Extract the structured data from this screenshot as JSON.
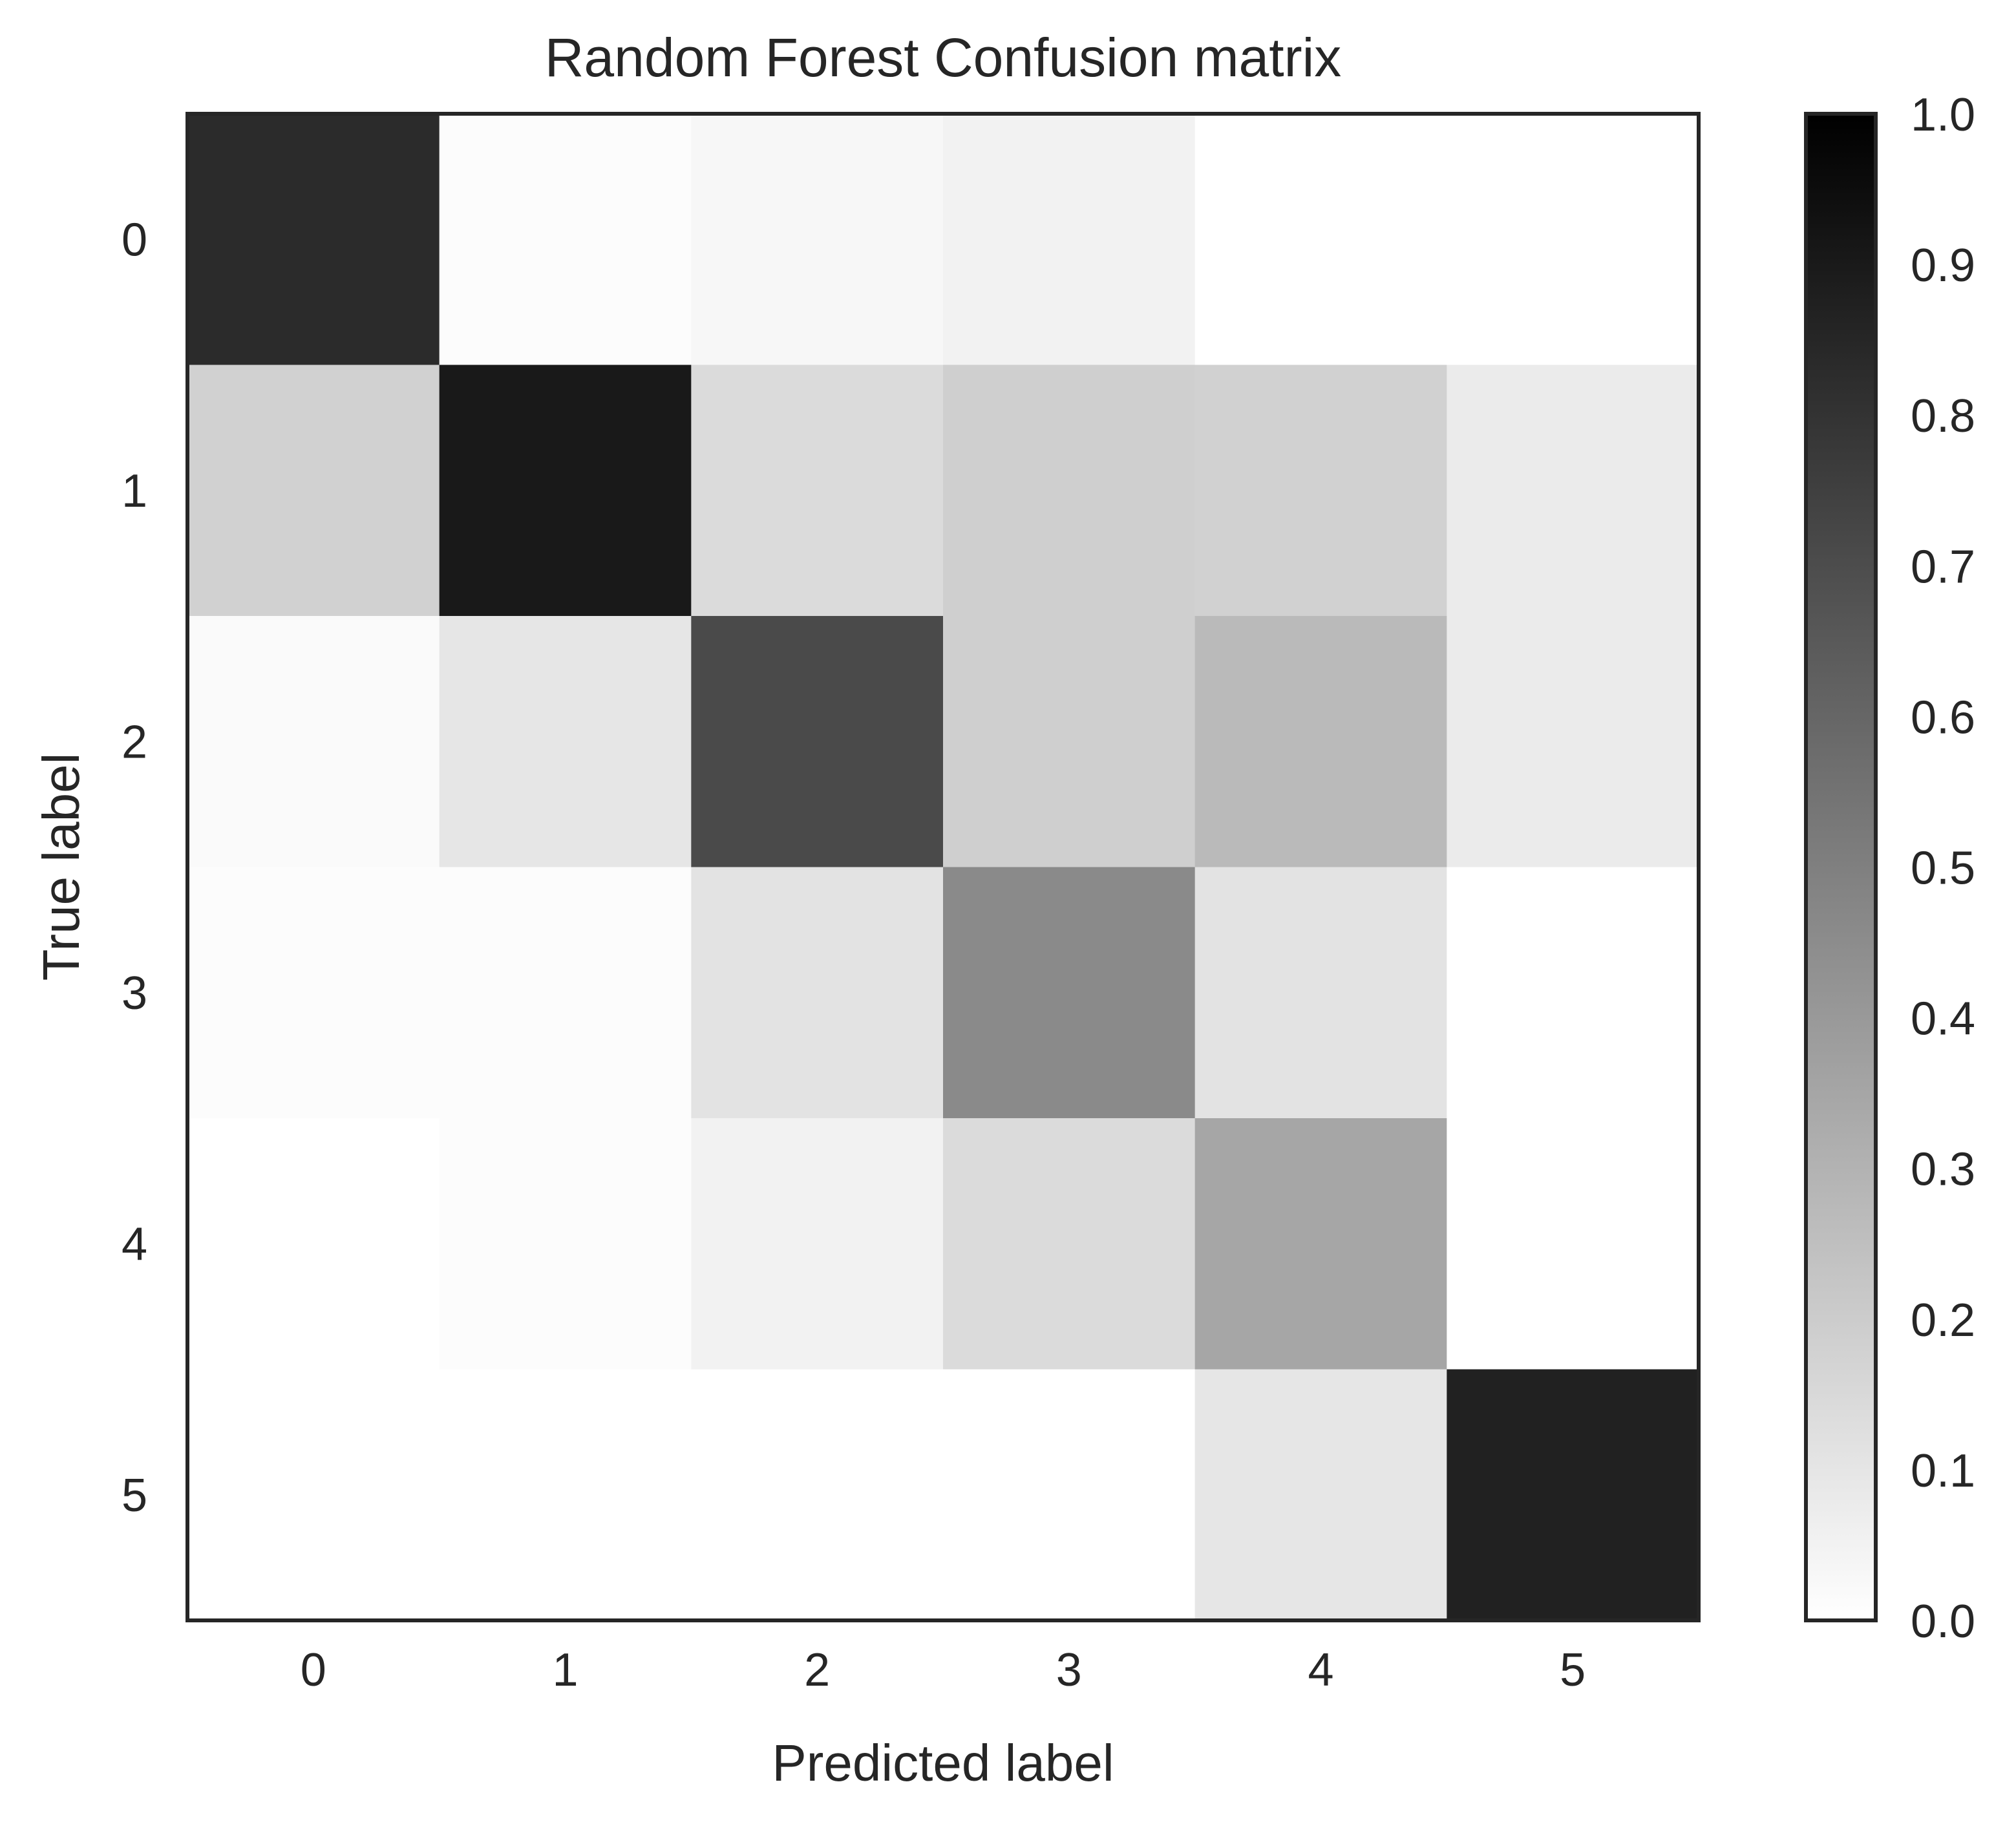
{
  "chart_data": {
    "type": "heatmap",
    "title": "Random Forest Confusion matrix",
    "xlabel": "Predicted label",
    "ylabel": "True label",
    "x_categories": [
      "0",
      "1",
      "2",
      "3",
      "4",
      "5"
    ],
    "y_categories": [
      "0",
      "1",
      "2",
      "3",
      "4",
      "5"
    ],
    "colormap": "Greys",
    "vmin": 0.0,
    "vmax": 1.0,
    "values": [
      [
        0.83,
        0.01,
        0.03,
        0.05,
        0.0,
        0.0
      ],
      [
        0.18,
        0.9,
        0.14,
        0.19,
        0.18,
        0.08
      ],
      [
        0.02,
        0.1,
        0.71,
        0.19,
        0.27,
        0.08
      ],
      [
        0.01,
        0.01,
        0.11,
        0.46,
        0.11,
        0.0
      ],
      [
        0.0,
        0.01,
        0.05,
        0.14,
        0.35,
        0.0
      ],
      [
        0.0,
        0.0,
        0.0,
        0.0,
        0.1,
        0.87
      ]
    ],
    "colorbar_ticks": [
      "0.0",
      "0.1",
      "0.2",
      "0.3",
      "0.4",
      "0.5",
      "0.6",
      "0.7",
      "0.8",
      "0.9",
      "1.0"
    ],
    "colors": {
      "text": "#262626",
      "frame": "#262626",
      "background": "#ffffff"
    }
  }
}
